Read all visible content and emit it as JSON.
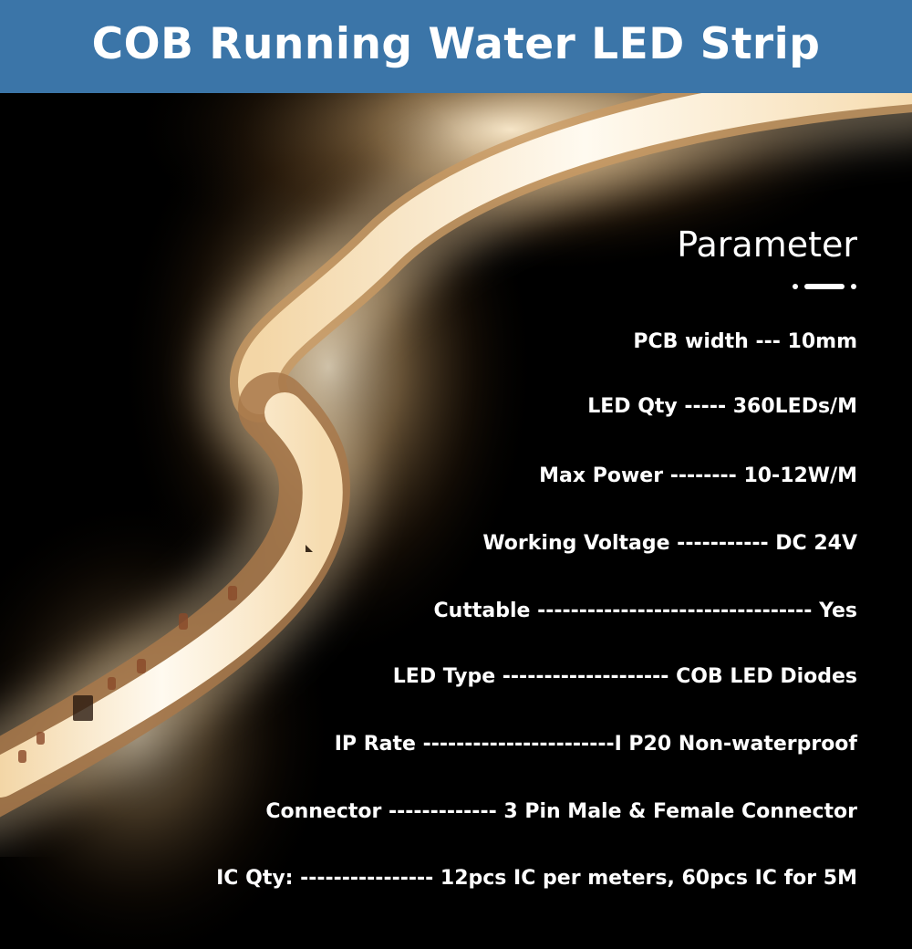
{
  "title": "COB Running Water LED Strip",
  "parameters_heading": "Parameter",
  "parameters": [
    "PCB width --- 10mm",
    "LED Qty ----- 360LEDs/M",
    "Max Power -------- 10-12W/M",
    "Working Voltage ----------- DC 24V",
    "Cuttable --------------------------------- Yes",
    "LED Type -------------------- COB LED Diodes",
    "IP Rate -----------------------I P20 Non-waterproof",
    "Connector ------------- 3 Pin Male & Female Connector",
    "IC Qty: ---------------- 12pcs IC per meters, 60pcs IC for 5M"
  ],
  "colors": {
    "banner": "#3b75a8",
    "text": "#ffffff",
    "glow": "#fff4dc",
    "pcb": "#e8d8c0"
  }
}
